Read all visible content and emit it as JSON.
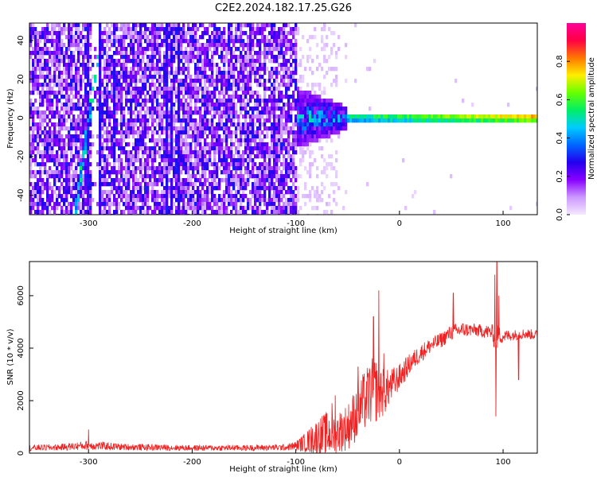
{
  "title": "C2E2.2024.182.17.25.G26",
  "chart_data": [
    {
      "type": "heatmap",
      "xlabel": "Height of straight line (km)",
      "ylabel": "Frequency (Hz)",
      "xlim": [
        -357,
        133
      ],
      "ylim": [
        -50,
        49
      ],
      "x_ticks": [
        -300,
        -200,
        -100,
        0,
        100
      ],
      "y_ticks": [
        -40,
        -20,
        0,
        20,
        40
      ],
      "colorbar": {
        "label": "Normalized spectral amplitude",
        "range": [
          0,
          1
        ],
        "ticks": [
          0.0,
          0.2,
          0.4,
          0.6,
          0.8
        ],
        "colors": [
          "#f4e8ff",
          "#cc99ff",
          "#8800ff",
          "#2200ee",
          "#0066ff",
          "#00ccff",
          "#00ee66",
          "#66ff00",
          "#ffee00",
          "#ff7700",
          "#ff0044",
          "#ff0099"
        ]
      },
      "features": {
        "noise_region_x": [
          -357,
          -100
        ],
        "noise_amplitude": 0.25,
        "slanted_trace": {
          "x_start": -313,
          "y_start": -50,
          "x_end": -290,
          "y_end": 35,
          "amplitude": 0.5
        },
        "faint_vertical_traces_x": [
          -300,
          -288,
          -275,
          -225,
          -220,
          -213
        ],
        "carrier_line": {
          "x_start": -100,
          "x_end": 133,
          "y": 0,
          "amplitude_start": 0.45,
          "amplitude_end": 0.85
        },
        "burst_x": [
          -100,
          -50
        ]
      }
    },
    {
      "type": "line",
      "xlabel": "Height of straight line (km)",
      "ylabel": "SNR (10 * v/v)",
      "xlim": [
        -357,
        133
      ],
      "ylim": [
        0,
        7300
      ],
      "x_ticks": [
        -300,
        -200,
        -100,
        0,
        100
      ],
      "y_ticks": [
        0,
        2000,
        4000,
        6000
      ],
      "series": [
        {
          "color": "#ee2222",
          "x": [
            -357,
            -330,
            -300,
            -270,
            -240,
            -200,
            -150,
            -110,
            -100,
            -90,
            -80,
            -70,
            -60,
            -50,
            -40,
            -30,
            -25,
            -20,
            -15,
            -10,
            0,
            10,
            20,
            30,
            40,
            50,
            60,
            70,
            80,
            90,
            93,
            95,
            100,
            110,
            120,
            133
          ],
          "y": [
            200,
            220,
            300,
            240,
            220,
            200,
            200,
            220,
            280,
            420,
            600,
            700,
            800,
            1000,
            1600,
            2200,
            2400,
            2400,
            2300,
            2500,
            2900,
            3400,
            3800,
            4100,
            4300,
            4600,
            4700,
            4700,
            4650,
            4600,
            4100,
            4500,
            4450,
            4500,
            4550,
            4500
          ],
          "noise_amplitude": [
            120,
            120,
            180,
            130,
            120,
            110,
            110,
            120,
            180,
            400,
            700,
            900,
            800,
            900,
            1100,
            1200,
            1300,
            1200,
            900,
            700,
            500,
            400,
            350,
            300,
            300,
            300,
            300,
            250,
            250,
            300,
            600,
            400,
            250,
            200,
            200,
            200
          ],
          "spikes": [
            {
              "x": -300,
              "y": 900
            },
            {
              "x": -65,
              "y": 1900
            },
            {
              "x": -62,
              "y": 2200
            },
            {
              "x": -40,
              "y": 3300
            },
            {
              "x": -25,
              "y": 5200
            },
            {
              "x": -20,
              "y": 6200
            },
            {
              "x": -15,
              "y": 3800
            },
            {
              "x": 52,
              "y": 6100
            },
            {
              "x": 92,
              "y": 6800
            },
            {
              "x": 94,
              "y": 7300
            },
            {
              "x": 93,
              "y": 1400
            },
            {
              "x": 96,
              "y": 6000
            },
            {
              "x": 115,
              "y": 2800
            }
          ]
        }
      ]
    }
  ]
}
